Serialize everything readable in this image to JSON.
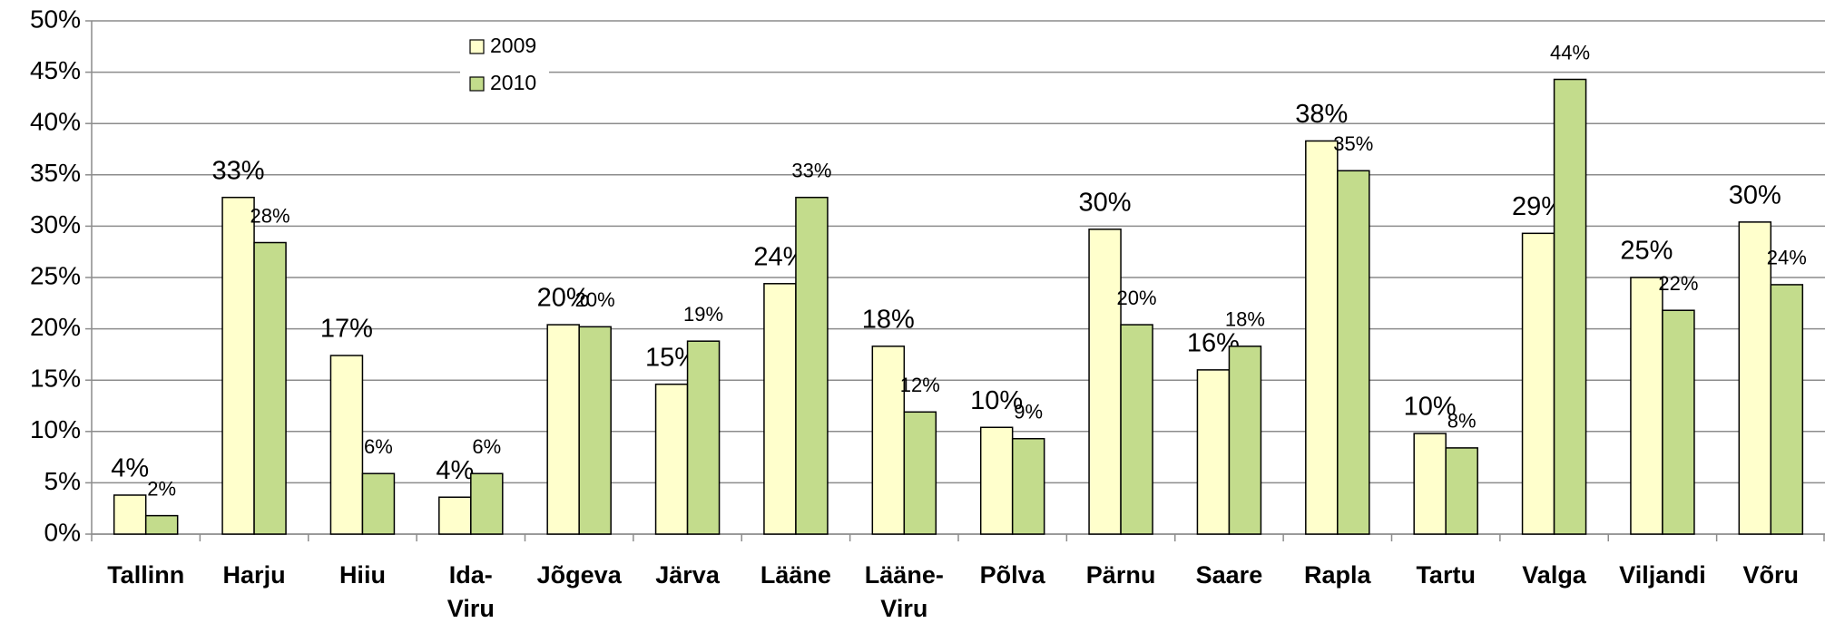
{
  "chart_data": {
    "type": "bar",
    "categories": [
      "Tallinn",
      "Harju",
      "Hiiu",
      "Ida-Viru",
      "Jõgeva",
      "Järva",
      "Lääne",
      "Lääne-Viru",
      "Põlva",
      "Pärnu",
      "Saare",
      "Rapla",
      "Tartu",
      "Valga",
      "Viljandi",
      "Võru"
    ],
    "series": [
      {
        "name": "2009",
        "color": "#ffffcc",
        "values": [
          3.8,
          32.8,
          17.4,
          3.6,
          20.4,
          14.6,
          24.4,
          18.3,
          10.4,
          29.7,
          16.0,
          38.3,
          9.8,
          29.3,
          25.0,
          30.4
        ],
        "value_labels": [
          "4%",
          "33%",
          "17%",
          "4%",
          "20%",
          "15%",
          "24%",
          "18%",
          "10%",
          "30%",
          "16%",
          "38%",
          "10%",
          "29%",
          "25%",
          "30%"
        ]
      },
      {
        "name": "2010",
        "color": "#c3dc8c",
        "values": [
          1.8,
          28.4,
          5.9,
          5.9,
          20.2,
          18.8,
          32.8,
          11.9,
          9.3,
          20.4,
          18.3,
          35.4,
          8.4,
          44.3,
          21.8,
          24.3
        ],
        "value_labels": [
          "2%",
          "28%",
          "6%",
          "6%",
          "20%",
          "19%",
          "33%",
          "12%",
          "9%",
          "20%",
          "18%",
          "35%",
          "8%",
          "44%",
          "22%",
          "24%"
        ]
      }
    ],
    "ylim": [
      0,
      50
    ],
    "yticks": [
      {
        "value": 0,
        "label": "0%"
      },
      {
        "value": 5,
        "label": "5%"
      },
      {
        "value": 10,
        "label": "10%"
      },
      {
        "value": 15,
        "label": "15%"
      },
      {
        "value": 20,
        "label": "20%"
      },
      {
        "value": 25,
        "label": "25%"
      },
      {
        "value": 30,
        "label": "30%"
      },
      {
        "value": 35,
        "label": "35%"
      },
      {
        "value": 40,
        "label": "40%"
      },
      {
        "value": 45,
        "label": "45%"
      },
      {
        "value": 50,
        "label": "50%"
      }
    ],
    "grid": true,
    "legend": "top-left"
  }
}
